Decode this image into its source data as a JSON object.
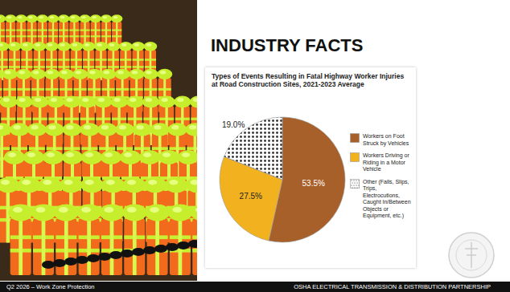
{
  "slide": {
    "heading": "INDUSTRY FACTS",
    "footer_left": "Q2 2026 – Work Zone Protection",
    "footer_right": "OSHA ELECTRICAL TRANSMISSION & DISTRIBUTION PARTNERSHIP"
  },
  "chart_data": {
    "type": "pie",
    "title": "Types of Events Resulting in Fatal Highway Worker Injuries at Road Construction Sites, 2021-2023 Average",
    "categories": [
      "Workers on Foot Struck by Vehicles",
      "Workers Driving or Riding in a Motor Vehicle",
      "Other (Falls, Slips, Trips, Electrocutions, Caught In/Between Objects or Equipment, etc.)"
    ],
    "values": [
      53.5,
      27.5,
      19.0
    ],
    "value_labels": [
      "53.5%",
      "27.5%",
      "19.0%"
    ],
    "colors": [
      "#a8602a",
      "#f2b220",
      "#ffffff"
    ],
    "data_labels": true,
    "legend": "right"
  }
}
